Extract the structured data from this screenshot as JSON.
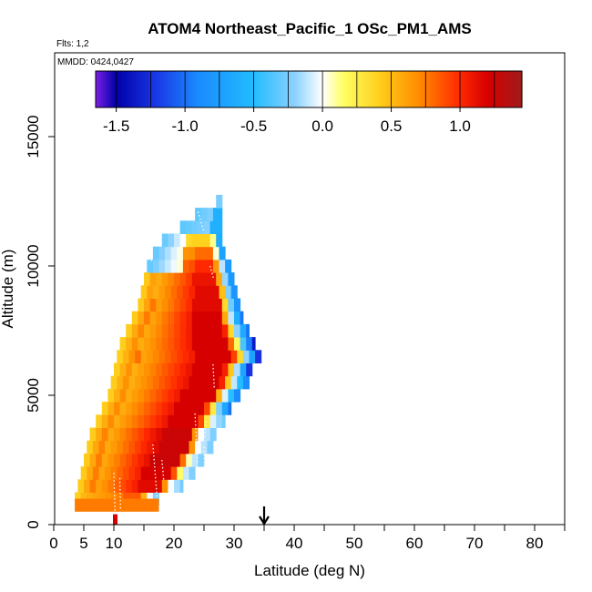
{
  "chart_data": {
    "type": "heatmap",
    "title": "ATOM4 Northeast_Pacific_1 OSc_PM1_AMS",
    "flights_label": "Flts: 1,2",
    "dates_label": "MMDD: 0424,0427",
    "xlabel": "Latitude (deg N)",
    "ylabel": "Altitude (m)",
    "xlim": [
      0,
      85
    ],
    "ylim": [
      0,
      17500
    ],
    "x_ticks": [
      0,
      5,
      10,
      20,
      30,
      40,
      50,
      60,
      70,
      80
    ],
    "x_minor_ticks": [
      15,
      25,
      35,
      45,
      55,
      65,
      75,
      85
    ],
    "y_ticks": [
      0,
      5000,
      10000,
      15000
    ],
    "colorbar": {
      "ticks": [
        -1.5,
        -1.0,
        -0.5,
        0.0,
        0.5,
        1.0
      ],
      "tick_labels": [
        "-1.5",
        "-1.0",
        "-0.5",
        "0.0",
        "0.5",
        "1.0"
      ],
      "range": [
        -1.65,
        1.45
      ]
    },
    "marker_latitude": 35,
    "colors": {
      "stops": [
        "#7a1fe6",
        "#0000a8",
        "#1a3ae6",
        "#1a8cff",
        "#22bcff",
        "#8cd2ff",
        "#ffffff",
        "#ffff66",
        "#ffd21e",
        "#ff8c00",
        "#ff2800",
        "#d60000",
        "#a01b1b"
      ],
      "stop_values": [
        -1.65,
        -1.5,
        -1.2,
        -0.9,
        -0.5,
        -0.2,
        0.0,
        0.15,
        0.4,
        0.7,
        1.0,
        1.2,
        1.45
      ]
    },
    "profile": {
      "description": "latitude-altitude curtain of OSc values; each row lists [lat_start, lat_end] extent and value breakpoints",
      "rows": [
        {
          "alt": 1000,
          "x0": 3.5,
          "x1": 17.5,
          "core": 0.75
        },
        {
          "alt": 1500,
          "x0": 4.0,
          "x1": 21.5,
          "core": 1.05
        },
        {
          "alt": 2000,
          "x0": 4.5,
          "x1": 23.5,
          "core": 1.1
        },
        {
          "alt": 2500,
          "x0": 5.0,
          "x1": 25.0,
          "core": 1.15
        },
        {
          "alt": 3000,
          "x0": 5.5,
          "x1": 26.5,
          "core": 1.15
        },
        {
          "alt": 3500,
          "x0": 6.0,
          "x1": 27.0,
          "core": 1.15
        },
        {
          "alt": 4000,
          "x0": 7.0,
          "x1": 28.5,
          "core": 1.1
        },
        {
          "alt": 4500,
          "x0": 8.0,
          "x1": 29.5,
          "core": 1.1
        },
        {
          "alt": 5000,
          "x0": 9.0,
          "x1": 31.0,
          "core": 1.1
        },
        {
          "alt": 5500,
          "x0": 9.5,
          "x1": 32.5,
          "core": 1.1
        },
        {
          "alt": 6000,
          "x0": 10.0,
          "x1": 33.0,
          "core": 1.1
        },
        {
          "alt": 6500,
          "x0": 10.5,
          "x1": 34.5,
          "core": 1.1
        },
        {
          "alt": 7000,
          "x0": 11.0,
          "x1": 33.5,
          "core": 1.1
        },
        {
          "alt": 7500,
          "x0": 12.0,
          "x1": 32.5,
          "core": 1.1
        },
        {
          "alt": 8000,
          "x0": 13.0,
          "x1": 31.5,
          "core": 1.1
        },
        {
          "alt": 8500,
          "x0": 14.0,
          "x1": 31.0,
          "core": 1.05
        },
        {
          "alt": 9000,
          "x0": 14.5,
          "x1": 30.5,
          "core": 1.05
        },
        {
          "alt": 9500,
          "x0": 15.0,
          "x1": 30.0,
          "core": 1.0
        },
        {
          "alt": 10000,
          "x0": 15.5,
          "x1": 29.5,
          "core": 0.9
        },
        {
          "alt": 10500,
          "x0": 16.5,
          "x1": 28.5,
          "core": 0.7
        },
        {
          "alt": 11000,
          "x0": 18.0,
          "x1": 28.0,
          "core": 0.3
        },
        {
          "alt": 11500,
          "x0": 21.0,
          "x1": 28.0,
          "core": -0.3
        },
        {
          "alt": 12000,
          "x0": 23.5,
          "x1": 28.0,
          "core": -0.5
        },
        {
          "alt": 12500,
          "x0": 27.0,
          "x1": 28.0,
          "core": -0.5
        }
      ],
      "low_level_bar": {
        "alt_top": 1000,
        "alt_bottom": 500,
        "x0": 3.5,
        "x1": 17.5,
        "value": 0.75
      },
      "surface_marks": [
        {
          "lat": 10,
          "alt": 100,
          "value": 1.2
        }
      ]
    }
  }
}
